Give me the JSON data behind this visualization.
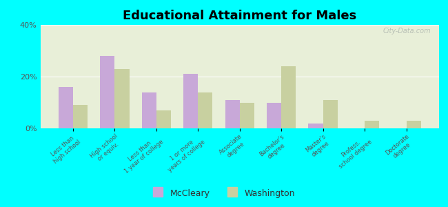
{
  "title": "Educational Attainment for Males",
  "categories": [
    "Less than\nhigh school",
    "High school\nor equiv.",
    "Less than\n1 year of college",
    "1 or more\nyears of college",
    "Associate\ndegree",
    "Bachelor's\ndegree",
    "Master's\ndegree",
    "Profess.\nschool degree",
    "Doctorate\ndegree"
  ],
  "mccleary": [
    16,
    28,
    14,
    21,
    11,
    10,
    2,
    0,
    0
  ],
  "washington": [
    9,
    23,
    7,
    14,
    10,
    24,
    11,
    3,
    3
  ],
  "mccleary_color": "#c8a8d8",
  "washington_color": "#c8d0a0",
  "background_color": "#00ffff",
  "plot_bg": "#e8efd8",
  "ylim": [
    0,
    40
  ],
  "yticks": [
    0,
    20,
    40
  ],
  "ytick_labels": [
    "0%",
    "20%",
    "40%"
  ],
  "bar_width": 0.35,
  "legend_labels": [
    "McCleary",
    "Washington"
  ],
  "watermark": "City-Data.com"
}
